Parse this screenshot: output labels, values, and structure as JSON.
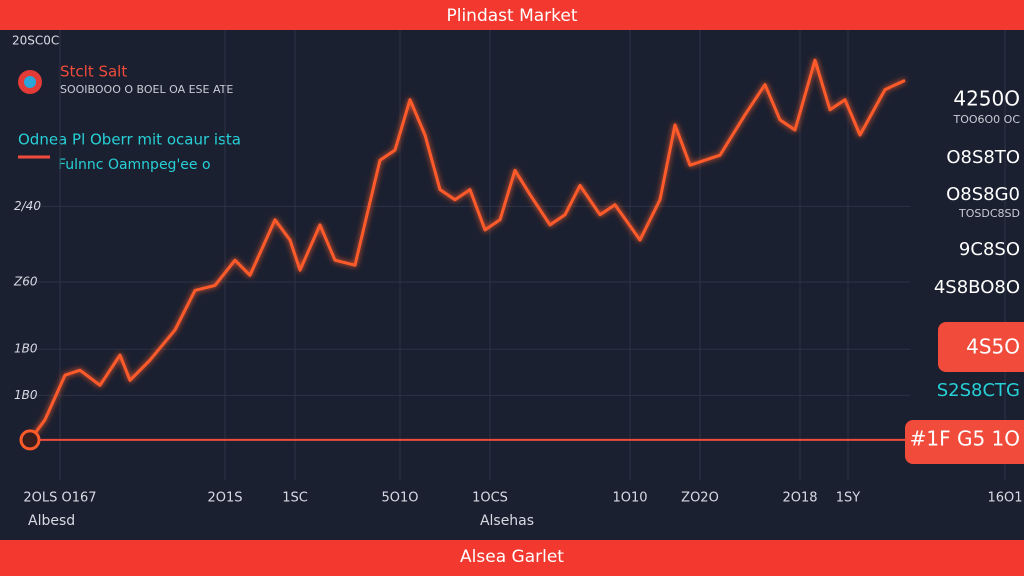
{
  "chart_data": {
    "type": "line",
    "title": "Plindast Market",
    "footer": "Alsea Garlet",
    "header_code": "20SC0C",
    "brand": "Stclt Salt",
    "brand_subtitle": "SOOIBOOO O BOEL OA ESE ATE",
    "legend_title": "Odnea Pl Oberr mit ocaur ista",
    "legend_subtitle": "Fulnnc Oamnpeg'ee o",
    "xlabel": "Alsehas",
    "xlabel_left": "Albesd",
    "color": "#ff5a2a",
    "grid": true,
    "reference_line": 12,
    "xlim": [
      0,
      100
    ],
    "ylim": [
      0,
      500
    ],
    "xticks": [
      {
        "value": 4,
        "label": "2OLS O167"
      },
      {
        "value": 20.5,
        "label": "2O1S"
      },
      {
        "value": 27.5,
        "label": "1SC"
      },
      {
        "value": 38,
        "label": "5O1O"
      },
      {
        "value": 47,
        "label": "1OCS"
      },
      {
        "value": 61,
        "label": "1O10"
      },
      {
        "value": 68,
        "label": "ZO2O"
      },
      {
        "value": 78,
        "label": "2O18"
      },
      {
        "value": 82.8,
        "label": "1SY"
      },
      {
        "value": 98.5,
        "label": "16O1"
      }
    ],
    "yticks": [
      {
        "value": 290,
        "label": "2/40"
      },
      {
        "value": 200,
        "label": "Z60"
      },
      {
        "value": 120,
        "label": "1B0"
      },
      {
        "value": 65,
        "label": "1B0"
      }
    ],
    "x": [
      1,
      2.5,
      4.5,
      6,
      8,
      10,
      11,
      13,
      15.5,
      17.5,
      19.5,
      21.5,
      23,
      25.5,
      27,
      28,
      30,
      31.5,
      33.5,
      36,
      37.5,
      39,
      40.5,
      42,
      43.5,
      45,
      46.5,
      48,
      49.5,
      51,
      53,
      54.5,
      56,
      58,
      59.5,
      62,
      64,
      65.5,
      67,
      68.5,
      70,
      72.5,
      74.5,
      76,
      77.5,
      79.5,
      81,
      82.5,
      84,
      86.5,
      88.5
    ],
    "values": [
      12,
      36,
      89,
      95,
      77,
      113,
      83,
      107,
      143,
      190,
      196,
      226,
      208,
      274,
      250,
      214,
      268,
      226,
      220,
      345,
      357,
      417,
      375,
      310,
      298,
      310,
      262,
      274,
      333,
      304,
      268,
      280,
      315,
      280,
      292,
      250,
      298,
      387,
      339,
      345,
      351,
      399,
      435,
      393,
      381,
      464,
      405,
      417,
      375,
      429,
      440
    ],
    "side_labels": [
      "4250O",
      "TOO6O0 OC",
      "O8S8TO",
      "O8S8G0",
      "TOSDC8SD",
      "9C8SO",
      "4S8BO8O",
      "4S5O",
      "S2S8CTG",
      "#1F G5 1O"
    ]
  }
}
